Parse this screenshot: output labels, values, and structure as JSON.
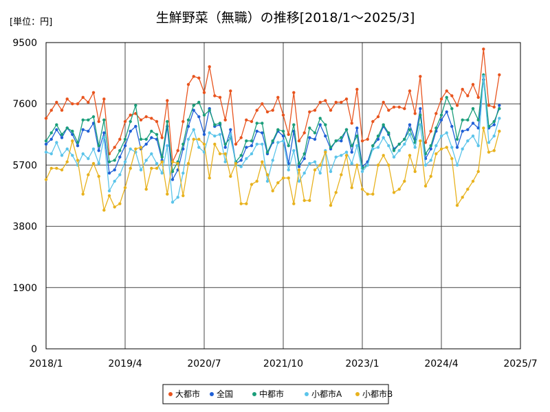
{
  "chart_data": {
    "type": "line",
    "title": "生鮮野菜（無職）の推移[2018/1～2025/3]",
    "unit_label": "[単位：円]",
    "xlabel": "",
    "ylabel": "",
    "ylim": [
      0,
      9500
    ],
    "yticks": [
      0,
      1900,
      3800,
      5700,
      7600,
      9500
    ],
    "ytick_labels": [
      "0",
      "1900",
      "3800",
      "5700",
      "7600",
      "9500"
    ],
    "xlim": [
      0,
      90
    ],
    "xticks": [
      0,
      15,
      30,
      45,
      60,
      75,
      90
    ],
    "xtick_labels": [
      "2018/1",
      "2019/4",
      "2020/7",
      "2021/10",
      "2023/1",
      "2024/4",
      "2025/7"
    ],
    "grid": true,
    "legend_position": "bottom",
    "series": [
      {
        "name": "大都市",
        "color": "#e8541e",
        "values": [
          7150,
          7400,
          7650,
          7400,
          7750,
          7600,
          7600,
          7800,
          7650,
          7950,
          7050,
          7750,
          6050,
          6250,
          6500,
          7050,
          7250,
          7300,
          7100,
          7200,
          7150,
          7050,
          6550,
          7700,
          5800,
          6150,
          7050,
          8200,
          8450,
          8400,
          7950,
          8750,
          7850,
          7800,
          7100,
          8000,
          6350,
          6550,
          7100,
          7050,
          7400,
          7600,
          7350,
          7400,
          7800,
          7250,
          6650,
          7950,
          6450,
          6700,
          7350,
          7400,
          7650,
          7700,
          7400,
          7650,
          7650,
          7750,
          7000,
          8050,
          6450,
          6500,
          7050,
          7200,
          7650,
          7400,
          7500,
          7500,
          7450,
          8000,
          7300,
          8450,
          6400,
          6750,
          7300,
          7750,
          8000,
          7850,
          7550,
          8050,
          7850,
          8200,
          7800,
          9300,
          7550,
          7500,
          8500
        ]
      },
      {
        "name": "全国",
        "color": "#1f5fd6",
        "values": [
          6350,
          6500,
          6800,
          6550,
          6850,
          6650,
          6300,
          6800,
          6750,
          7000,
          6150,
          6700,
          5450,
          5550,
          5950,
          6300,
          6750,
          6900,
          6200,
          6350,
          6550,
          6500,
          5850,
          6900,
          5250,
          5550,
          6200,
          6900,
          7400,
          7200,
          6650,
          7450,
          6900,
          6950,
          6250,
          6800,
          5750,
          5850,
          6250,
          6300,
          6750,
          6700,
          6050,
          6400,
          6750,
          6600,
          5750,
          6750,
          5650,
          5900,
          6550,
          6500,
          6950,
          6600,
          6200,
          6450,
          6450,
          6800,
          6100,
          6850,
          5650,
          5800,
          6300,
          6500,
          6900,
          6650,
          6200,
          6350,
          6500,
          6950,
          6500,
          7450,
          5900,
          6200,
          6750,
          7100,
          7350,
          6900,
          6250,
          6750,
          6800,
          7000,
          6850,
          8350,
          6850,
          6950,
          7550
        ]
      },
      {
        "name": "中都市",
        "color": "#1a9e7a",
        "values": [
          6450,
          6700,
          6950,
          6650,
          6850,
          6750,
          6400,
          7100,
          7100,
          7200,
          6300,
          7100,
          5800,
          5850,
          6150,
          6500,
          7050,
          7550,
          6500,
          6500,
          6750,
          6650,
          5950,
          7050,
          5500,
          5800,
          6350,
          7100,
          7550,
          7650,
          7250,
          7400,
          6950,
          7000,
          6350,
          6550,
          5800,
          6000,
          6450,
          6450,
          7000,
          7000,
          6100,
          6450,
          6800,
          6750,
          6300,
          6950,
          5750,
          6050,
          6850,
          6700,
          7150,
          6950,
          6250,
          6450,
          6550,
          6800,
          6300,
          6600,
          5600,
          5700,
          6300,
          6600,
          6950,
          6700,
          6150,
          6350,
          6500,
          6800,
          6400,
          7250,
          6050,
          6300,
          6850,
          7250,
          7800,
          7450,
          6500,
          7100,
          7100,
          7450,
          7100,
          8500,
          6900,
          7050,
          7450
        ]
      },
      {
        "name": "小都市A",
        "color": "#5bc4ea",
        "values": [
          6100,
          6050,
          6400,
          6000,
          6200,
          6000,
          5700,
          6050,
          5900,
          6200,
          5750,
          6550,
          4900,
          5200,
          5400,
          5800,
          6200,
          6100,
          5550,
          5850,
          6050,
          5750,
          5450,
          6300,
          4550,
          4700,
          5450,
          6500,
          6800,
          6250,
          6100,
          6700,
          6600,
          6650,
          5800,
          6650,
          5700,
          5650,
          5900,
          6050,
          6350,
          6350,
          5200,
          5850,
          6400,
          6450,
          5550,
          6150,
          5200,
          5450,
          5750,
          5800,
          5450,
          6150,
          5500,
          5950,
          6000,
          6100,
          5750,
          6300,
          5500,
          5700,
          6200,
          6250,
          6550,
          6300,
          5950,
          6150,
          6350,
          6650,
          6250,
          6950,
          5700,
          5850,
          6300,
          6600,
          6700,
          6250,
          5700,
          6200,
          6450,
          6600,
          6300,
          8450,
          6400,
          6600,
          7150
        ]
      },
      {
        "name": "小都市B",
        "color": "#e8b21e",
        "values": [
          5250,
          5600,
          5600,
          5550,
          5800,
          6450,
          5850,
          4800,
          5400,
          5750,
          5350,
          4300,
          4750,
          4400,
          4500,
          5000,
          5600,
          6200,
          6250,
          4950,
          5600,
          5600,
          5800,
          4800,
          5800,
          5750,
          4750,
          5750,
          6500,
          6500,
          6350,
          5300,
          6350,
          6050,
          6050,
          5350,
          5750,
          4500,
          4500,
          5100,
          5200,
          5800,
          5400,
          4900,
          5150,
          5300,
          5300,
          4500,
          5550,
          4600,
          4600,
          5550,
          5700,
          6100,
          4450,
          4850,
          5400,
          6000,
          5000,
          5700,
          4950,
          4800,
          4800,
          5700,
          6000,
          5700,
          4850,
          4950,
          5200,
          6000,
          5500,
          6450,
          5050,
          5350,
          6050,
          6200,
          6250,
          5900,
          4450,
          4700,
          4950,
          5200,
          5500,
          6850,
          6100,
          6150,
          6750
        ]
      }
    ]
  }
}
